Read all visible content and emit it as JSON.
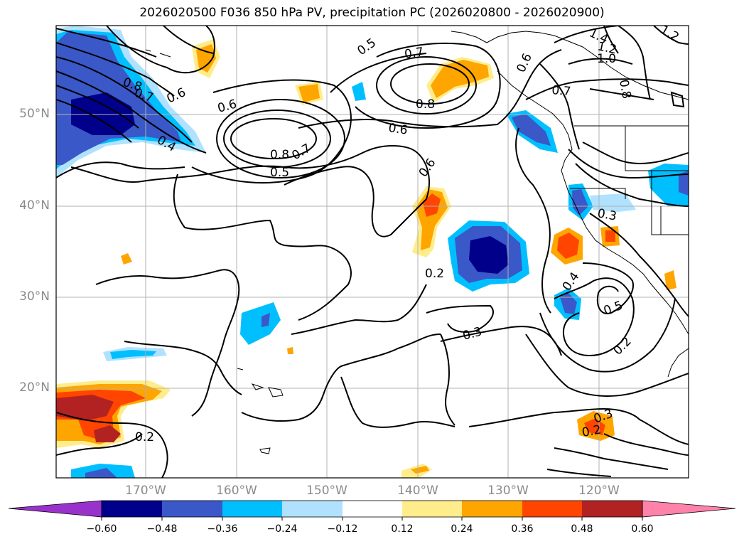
{
  "title": "2026020500 F036 850 hPa PV, precipitation PC (2026020800 - 2026020900)",
  "axes": {
    "lat_labels": [
      "50°N",
      "40°N",
      "30°N",
      "20°N"
    ],
    "lon_labels": [
      "170°W",
      "160°W",
      "150°W",
      "140°W",
      "130°W",
      "120°W"
    ]
  },
  "contour_labels": [
    "0.8",
    "0.7",
    "0.6",
    "0.4",
    "0.5",
    "0.6",
    "0.8",
    "0.7",
    "0.5",
    "0.7",
    "0.8",
    "0.6",
    "0.6",
    "0.6",
    "0.7",
    "1.4",
    "1.2",
    "1.0",
    "0.8",
    "1.2",
    "0.3",
    "0.4",
    "0.5",
    "0.2",
    "0.3",
    "0.2",
    "0.2",
    "0.3",
    "0.2"
  ],
  "colorbar": {
    "ticks": [
      "−0.60",
      "−0.48",
      "−0.36",
      "−0.24",
      "−0.12",
      "0.12",
      "0.24",
      "0.36",
      "0.48",
      "0.60"
    ],
    "colors": {
      "lt_m060": "#9932cc",
      "m060_m048": "#00008b",
      "m048_m036": "#3a58c8",
      "m036_m024": "#00bfff",
      "m024_m012": "#b0e2ff",
      "m012_p012": "#ffffff",
      "p012_p024": "#ffec8b",
      "p024_p036": "#ffa500",
      "p036_p048": "#ff4500",
      "p048_p060": "#b22222",
      "gt_p060": "#ff82ab"
    }
  }
}
